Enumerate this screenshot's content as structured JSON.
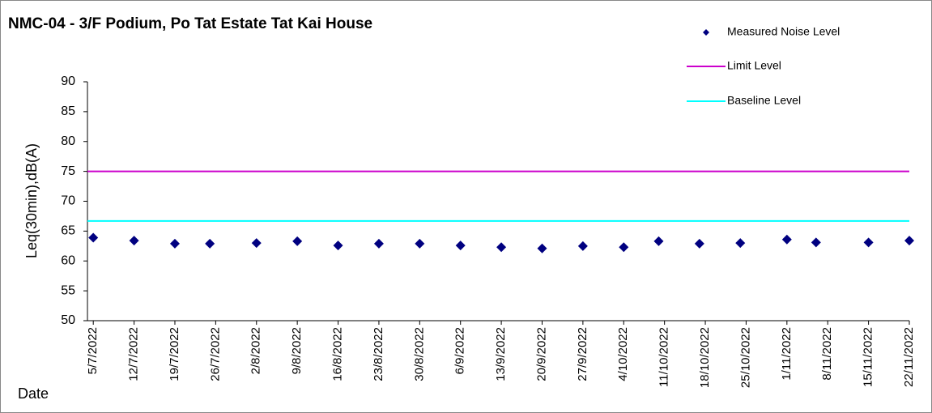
{
  "chart_data": {
    "type": "scatter",
    "title": "NMC-04 - 3/F Podium, Po Tat Estate Tat Kai House",
    "ylabel": "Leq(30min),dB(A)",
    "xlabel": "Date",
    "ylim": [
      50,
      90
    ],
    "yticks": [
      50,
      55,
      60,
      65,
      70,
      75,
      80,
      85,
      90
    ],
    "xlim": [
      "2022-07-04",
      "2022-11-22"
    ],
    "xticks": [
      {
        "value": "2022-07-05",
        "label": "5/7/2022"
      },
      {
        "value": "2022-07-12",
        "label": "12/7/2022"
      },
      {
        "value": "2022-07-19",
        "label": "19/7/2022"
      },
      {
        "value": "2022-07-26",
        "label": "26/7/2022"
      },
      {
        "value": "2022-08-02",
        "label": "2/8/2022"
      },
      {
        "value": "2022-08-09",
        "label": "9/8/2022"
      },
      {
        "value": "2022-08-16",
        "label": "16/8/2022"
      },
      {
        "value": "2022-08-23",
        "label": "23/8/2022"
      },
      {
        "value": "2022-08-30",
        "label": "30/8/2022"
      },
      {
        "value": "2022-09-06",
        "label": "6/9/2022"
      },
      {
        "value": "2022-09-13",
        "label": "13/9/2022"
      },
      {
        "value": "2022-09-20",
        "label": "20/9/2022"
      },
      {
        "value": "2022-09-27",
        "label": "27/9/2022"
      },
      {
        "value": "2022-10-04",
        "label": "4/10/2022"
      },
      {
        "value": "2022-10-11",
        "label": "11/10/2022"
      },
      {
        "value": "2022-10-18",
        "label": "18/10/2022"
      },
      {
        "value": "2022-10-25",
        "label": "25/10/2022"
      },
      {
        "value": "2022-11-01",
        "label": "1/11/2022"
      },
      {
        "value": "2022-11-08",
        "label": "8/11/2022"
      },
      {
        "value": "2022-11-15",
        "label": "15/11/2022"
      },
      {
        "value": "2022-11-22",
        "label": "22/11/2022"
      }
    ],
    "series": [
      {
        "name": "Measured Noise Level",
        "type": "scatter",
        "color": "#000080",
        "x": [
          "2022-07-05",
          "2022-07-12",
          "2022-07-19",
          "2022-07-25",
          "2022-08-02",
          "2022-08-09",
          "2022-08-16",
          "2022-08-23",
          "2022-08-30",
          "2022-09-06",
          "2022-09-13",
          "2022-09-20",
          "2022-09-27",
          "2022-10-04",
          "2022-10-10",
          "2022-10-17",
          "2022-10-24",
          "2022-11-01",
          "2022-11-06",
          "2022-11-15",
          "2022-11-22"
        ],
        "values": [
          63.9,
          63.4,
          62.9,
          62.9,
          63.0,
          63.3,
          62.6,
          62.9,
          62.9,
          62.6,
          62.3,
          62.1,
          62.5,
          62.3,
          63.3,
          62.9,
          63.0,
          63.6,
          63.1,
          63.1,
          63.4
        ]
      },
      {
        "name": "Limit Level",
        "type": "line",
        "color": "#cc00cc",
        "x": [
          "2022-07-04",
          "2022-11-22"
        ],
        "values": [
          75,
          75
        ]
      },
      {
        "name": "Baseline Level",
        "type": "line",
        "color": "#00ffff",
        "x": [
          "2022-07-04",
          "2022-11-22"
        ],
        "values": [
          66.7,
          66.7
        ]
      }
    ]
  }
}
